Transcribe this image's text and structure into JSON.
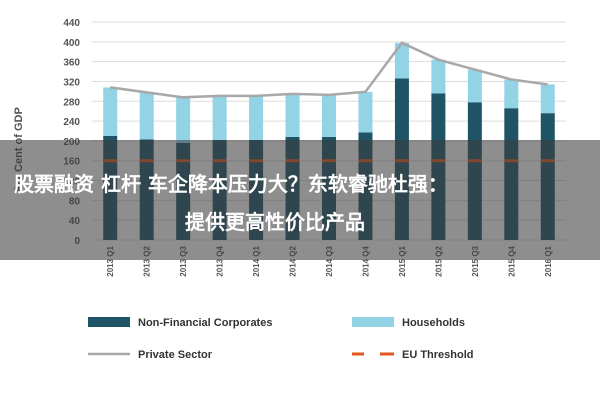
{
  "banner": {
    "line1": "股票融资 杠杆 车企降本压力大？东软睿驰杜强：",
    "line2": "提供更高性价比产品"
  },
  "colors": {
    "non_financial": "#1f5466",
    "households": "#92d3e5",
    "private_sector": "#a8a8a8",
    "eu_threshold": "#e0561e",
    "grid": "#dddddd"
  },
  "chart_data": {
    "type": "bar",
    "stacked": true,
    "categories": [
      "2013 Q1",
      "2013 Q2",
      "2013 Q3",
      "2013 Q4",
      "2014 Q1",
      "2014 Q2",
      "2014 Q3",
      "2014 Q4",
      "2015 Q1",
      "2015 Q2",
      "2015 Q3",
      "2015 Q4",
      "2016 Q1"
    ],
    "ylabel": "Per Cent of GDP",
    "ylim": [
      0,
      440
    ],
    "yticks": [
      0,
      40,
      80,
      120,
      160,
      200,
      240,
      280,
      320,
      360,
      400,
      440
    ],
    "grid": true,
    "legend_position": "bottom",
    "series": [
      {
        "name": "Non-Financial Corporates",
        "kind": "bar",
        "values": [
          210,
          203,
          196,
          202,
          202,
          208,
          208,
          217,
          326,
          296,
          278,
          266,
          256
        ]
      },
      {
        "name": "Households",
        "kind": "bar",
        "values": [
          98,
          95,
          92,
          89,
          89,
          87,
          85,
          82,
          72,
          68,
          66,
          58,
          58
        ]
      },
      {
        "name": "Private Sector",
        "kind": "line",
        "values": [
          308,
          298,
          288,
          291,
          291,
          295,
          293,
          299,
          398,
          364,
          344,
          324,
          314
        ]
      },
      {
        "name": "EU Threshold",
        "kind": "dashed",
        "values": [
          160,
          160,
          160,
          160,
          160,
          160,
          160,
          160,
          160,
          160,
          160,
          160,
          160
        ]
      }
    ]
  }
}
